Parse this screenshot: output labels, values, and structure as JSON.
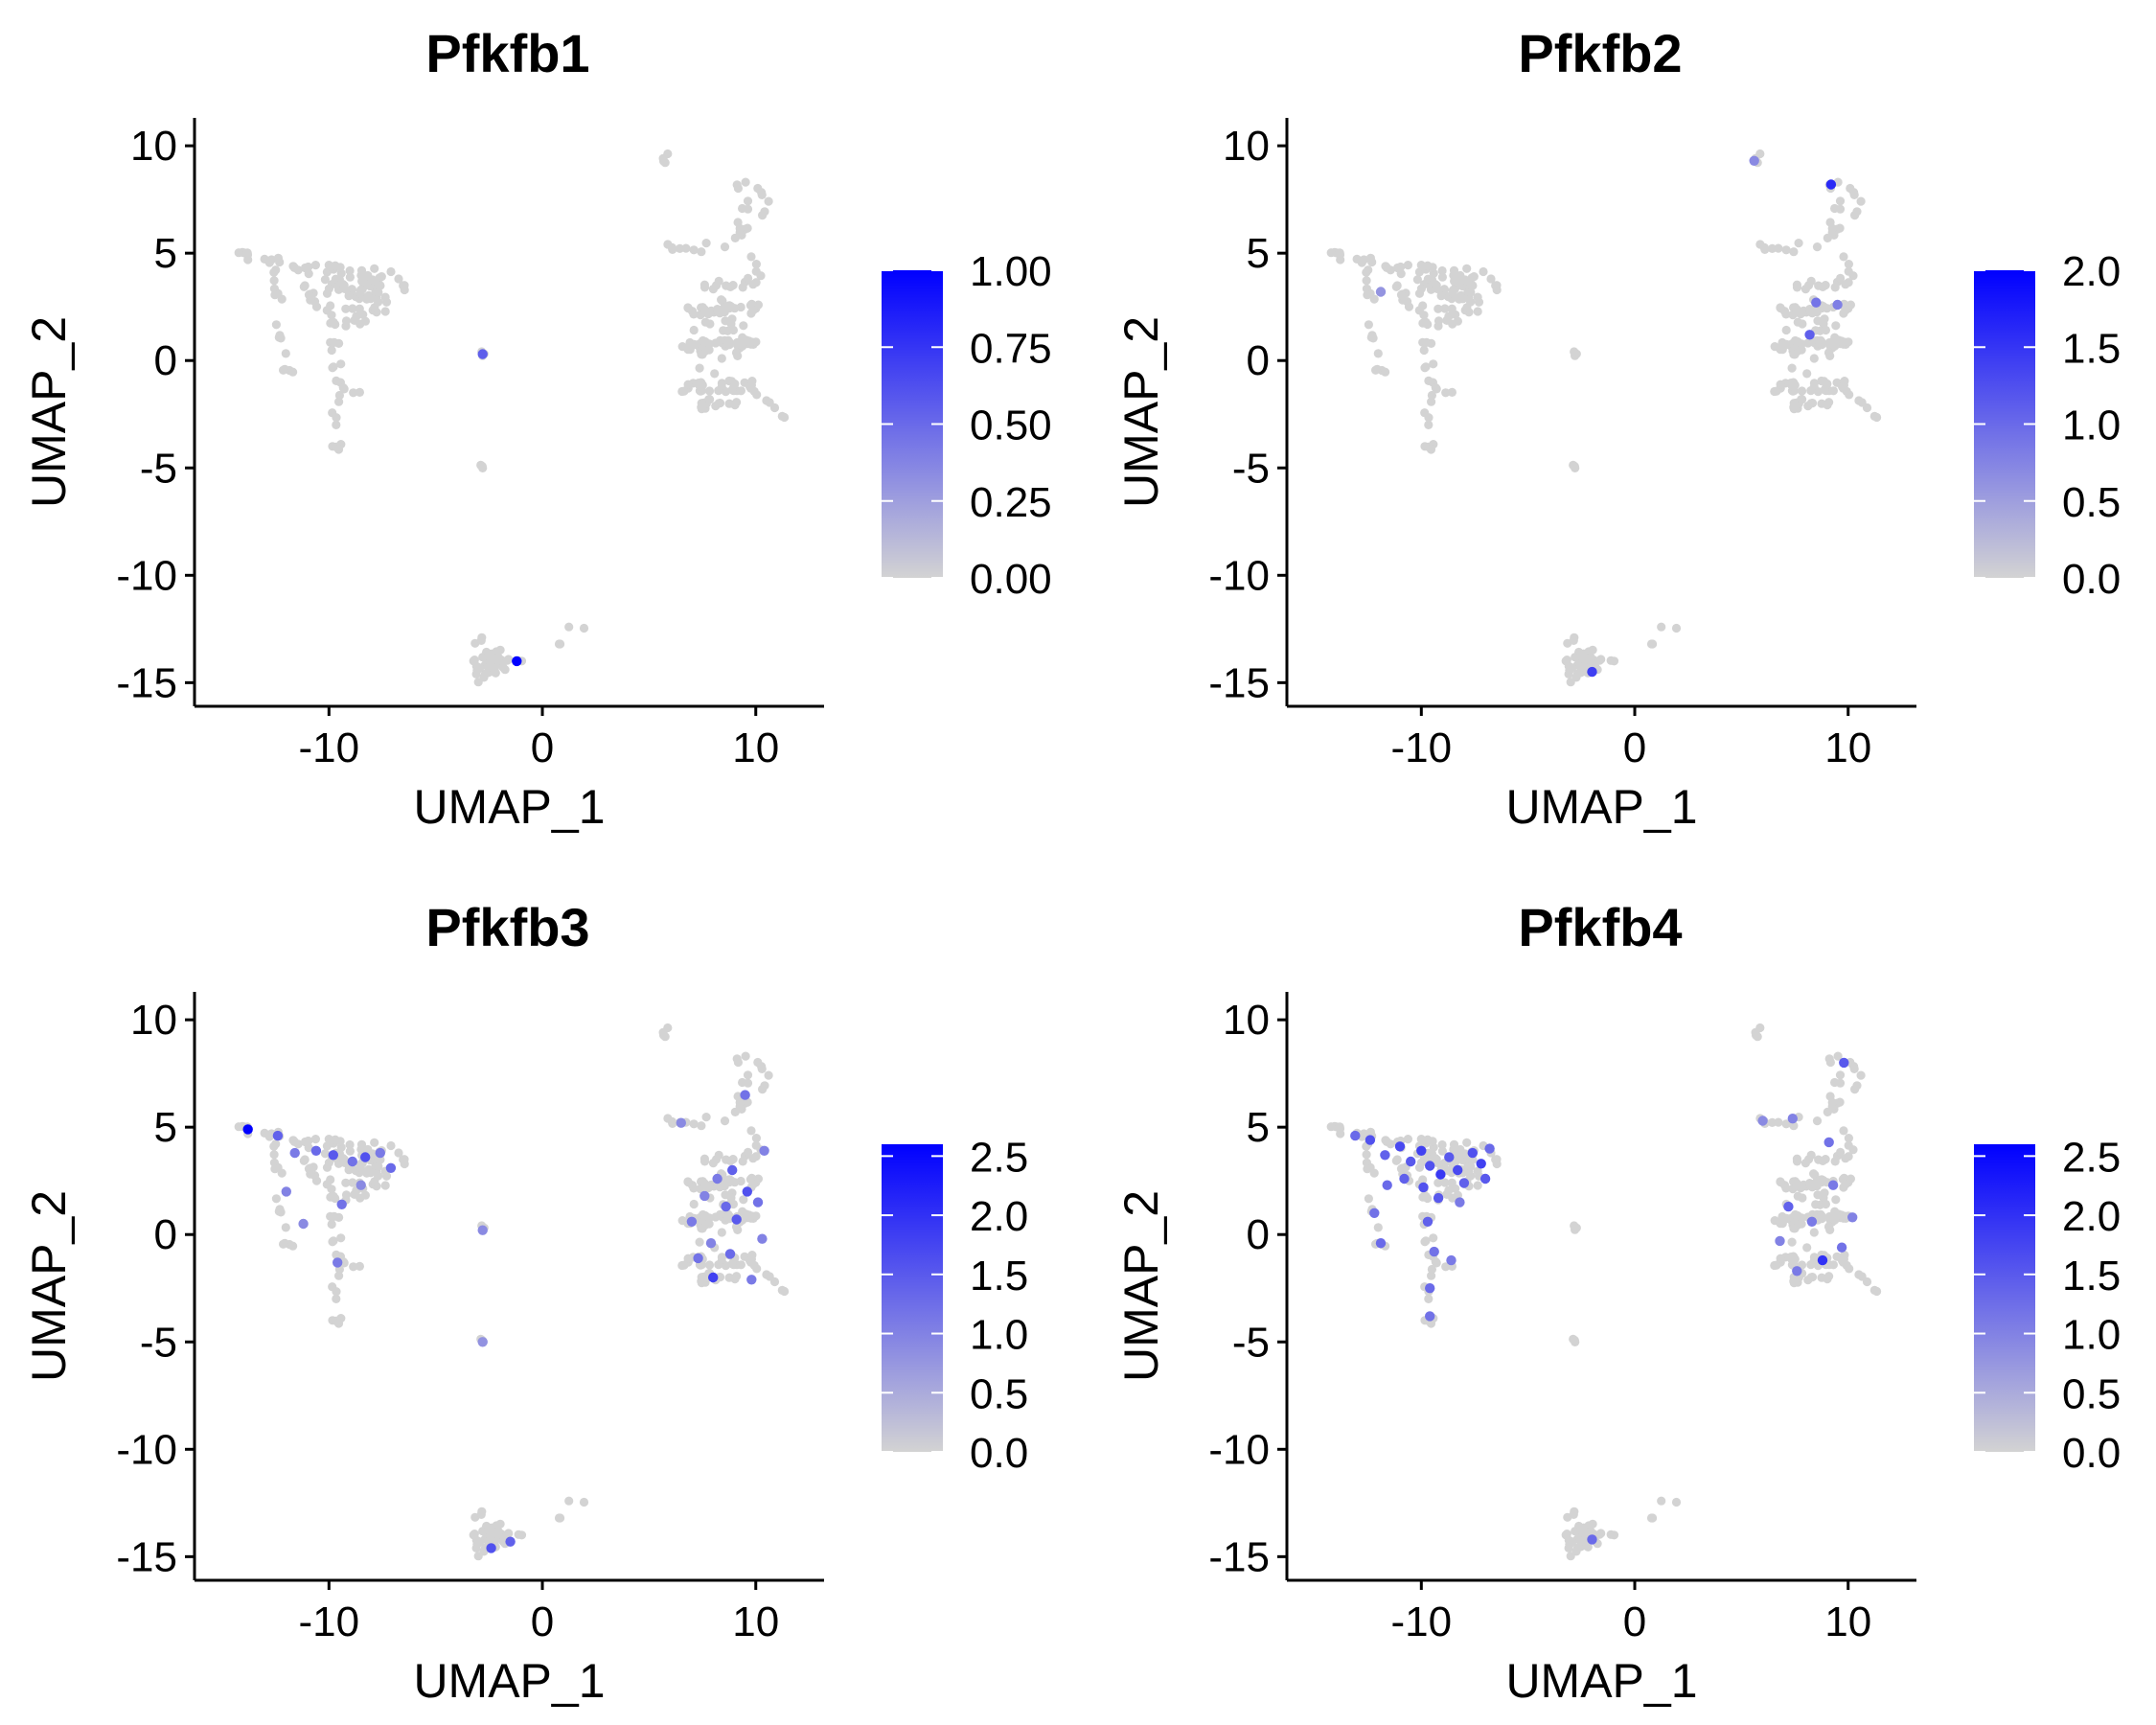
{
  "colors": {
    "low": "#d3d3d3",
    "high": "#0000ff",
    "axis": "#000000",
    "background": "#ffffff"
  },
  "axes": {
    "xlabel": "UMAP_1",
    "ylabel": "UMAP_2",
    "xticks": [
      -10,
      0,
      10
    ],
    "xtick_labels": [
      "-10",
      "0",
      "10"
    ],
    "yticks": [
      10,
      5,
      0,
      -5,
      -10,
      -15
    ],
    "ytick_labels": [
      "10",
      "5",
      "0",
      "-5",
      "-10",
      "-15"
    ],
    "xlim": [
      -16.3,
      13.2
    ],
    "ylim": [
      -16.1,
      11.3
    ]
  },
  "chart_data": [
    {
      "type": "scatter",
      "title": "Pfkfb1",
      "xlabel": "UMAP_1",
      "ylabel": "UMAP_2",
      "xlim": [
        -16.3,
        13.2
      ],
      "ylim": [
        -16.1,
        11.3
      ],
      "grid": false,
      "legend_position": "right",
      "color_scale": {
        "min": 0,
        "max": 1.0,
        "low": "#d3d3d3",
        "high": "#0000ff"
      },
      "legend_ticks": [
        1.0,
        0.75,
        0.5,
        0.25,
        0.0
      ],
      "legend_labels": [
        "1.00",
        "0.75",
        "0.50",
        "0.25",
        "0.00"
      ],
      "expressing_cells": [
        {
          "x": -2.8,
          "y": 0.3,
          "value": 0.55
        },
        {
          "x": -1.2,
          "y": -14.0,
          "value": 1.0
        }
      ]
    },
    {
      "type": "scatter",
      "title": "Pfkfb2",
      "xlabel": "UMAP_1",
      "ylabel": "UMAP_2",
      "xlim": [
        -16.3,
        13.2
      ],
      "ylim": [
        -16.1,
        11.3
      ],
      "grid": false,
      "legend_position": "right",
      "color_scale": {
        "min": 0,
        "max": 2.0,
        "low": "#d3d3d3",
        "high": "#0000ff"
      },
      "legend_ticks": [
        2.0,
        1.5,
        1.0,
        0.5,
        0.0
      ],
      "legend_labels": [
        "2.0",
        "1.5",
        "1.0",
        "0.5",
        "0.0"
      ],
      "expressing_cells": [
        {
          "x": 9.2,
          "y": 8.2,
          "value": 1.6
        },
        {
          "x": 8.5,
          "y": 2.7,
          "value": 0.9
        },
        {
          "x": 8.2,
          "y": 1.2,
          "value": 1.1
        },
        {
          "x": 9.5,
          "y": 2.6,
          "value": 0.8
        },
        {
          "x": -11.9,
          "y": 3.2,
          "value": 0.6
        },
        {
          "x": -2.0,
          "y": -14.5,
          "value": 1.4
        },
        {
          "x": 5.6,
          "y": 9.3,
          "value": 0.7
        }
      ]
    },
    {
      "type": "scatter",
      "title": "Pfkfb3",
      "xlabel": "UMAP_1",
      "ylabel": "UMAP_2",
      "xlim": [
        -16.3,
        13.2
      ],
      "ylim": [
        -16.1,
        11.3
      ],
      "grid": false,
      "legend_position": "right",
      "color_scale": {
        "min": 0,
        "max": 2.6,
        "low": "#d3d3d3",
        "high": "#0000ff"
      },
      "legend_ticks": [
        2.5,
        2.0,
        1.5,
        1.0,
        0.5,
        0.0
      ],
      "legend_labels": [
        "2.5",
        "2.0",
        "1.5",
        "1.0",
        "0.5",
        "0.0"
      ],
      "expressing_cells": [
        {
          "x": -13.8,
          "y": 4.9,
          "value": 2.6
        },
        {
          "x": -12.4,
          "y": 4.6,
          "value": 1.4
        },
        {
          "x": -11.6,
          "y": 3.8,
          "value": 1.1
        },
        {
          "x": -10.6,
          "y": 3.9,
          "value": 1.3
        },
        {
          "x": -9.8,
          "y": 3.7,
          "value": 1.5
        },
        {
          "x": -8.9,
          "y": 3.4,
          "value": 1.2
        },
        {
          "x": -8.3,
          "y": 3.6,
          "value": 1.6
        },
        {
          "x": -7.6,
          "y": 3.8,
          "value": 1.1
        },
        {
          "x": -7.1,
          "y": 3.1,
          "value": 1.3
        },
        {
          "x": -12.0,
          "y": 2.0,
          "value": 1.0
        },
        {
          "x": -9.4,
          "y": 1.4,
          "value": 1.2
        },
        {
          "x": -11.2,
          "y": 0.5,
          "value": 0.9
        },
        {
          "x": -9.6,
          "y": -1.3,
          "value": 1.1
        },
        {
          "x": -8.5,
          "y": 2.3,
          "value": 0.9
        },
        {
          "x": 9.5,
          "y": 6.5,
          "value": 1.2
        },
        {
          "x": 8.9,
          "y": 3.0,
          "value": 1.4
        },
        {
          "x": 8.2,
          "y": 2.6,
          "value": 1.1
        },
        {
          "x": 9.6,
          "y": 2.0,
          "value": 1.6
        },
        {
          "x": 8.6,
          "y": 1.3,
          "value": 1.3
        },
        {
          "x": 9.1,
          "y": 0.7,
          "value": 1.5
        },
        {
          "x": 7.6,
          "y": 1.8,
          "value": 1.0
        },
        {
          "x": 10.1,
          "y": 1.5,
          "value": 1.2
        },
        {
          "x": 7.0,
          "y": 0.6,
          "value": 1.1
        },
        {
          "x": 7.9,
          "y": -0.4,
          "value": 1.0
        },
        {
          "x": 8.8,
          "y": -0.9,
          "value": 1.3
        },
        {
          "x": 7.3,
          "y": -1.1,
          "value": 1.2
        },
        {
          "x": 8.0,
          "y": -2.0,
          "value": 1.8
        },
        {
          "x": 9.8,
          "y": -2.1,
          "value": 1.1
        },
        {
          "x": 10.3,
          "y": -0.2,
          "value": 1.0
        },
        {
          "x": 6.5,
          "y": 5.2,
          "value": 0.9
        },
        {
          "x": 10.4,
          "y": 3.9,
          "value": 1.0
        },
        {
          "x": -2.4,
          "y": -14.6,
          "value": 1.6
        },
        {
          "x": -1.5,
          "y": -14.3,
          "value": 1.4
        },
        {
          "x": -2.8,
          "y": 0.2,
          "value": 0.9
        },
        {
          "x": -2.8,
          "y": -5.0,
          "value": 0.8
        }
      ]
    },
    {
      "type": "scatter",
      "title": "Pfkfb4",
      "xlabel": "UMAP_1",
      "ylabel": "UMAP_2",
      "xlim": [
        -16.3,
        13.2
      ],
      "ylim": [
        -16.1,
        11.3
      ],
      "grid": false,
      "legend_position": "right",
      "color_scale": {
        "min": 0,
        "max": 2.6,
        "low": "#d3d3d3",
        "high": "#0000ff"
      },
      "legend_ticks": [
        2.5,
        2.0,
        1.5,
        1.0,
        0.5,
        0.0
      ],
      "legend_labels": [
        "2.5",
        "2.0",
        "1.5",
        "1.0",
        "0.5",
        "0.0"
      ],
      "expressing_cells": [
        {
          "x": -13.1,
          "y": 4.6,
          "value": 1.3
        },
        {
          "x": -12.4,
          "y": 4.4,
          "value": 1.6
        },
        {
          "x": -11.7,
          "y": 3.7,
          "value": 1.4
        },
        {
          "x": -11.0,
          "y": 4.1,
          "value": 1.7
        },
        {
          "x": -10.5,
          "y": 3.4,
          "value": 1.5
        },
        {
          "x": -10.0,
          "y": 3.9,
          "value": 1.8
        },
        {
          "x": -9.6,
          "y": 3.2,
          "value": 1.6
        },
        {
          "x": -9.1,
          "y": 2.8,
          "value": 1.9
        },
        {
          "x": -8.7,
          "y": 3.6,
          "value": 1.5
        },
        {
          "x": -8.3,
          "y": 3.0,
          "value": 1.7
        },
        {
          "x": -8.0,
          "y": 2.4,
          "value": 1.4
        },
        {
          "x": -7.6,
          "y": 3.8,
          "value": 1.6
        },
        {
          "x": -7.2,
          "y": 3.3,
          "value": 1.8
        },
        {
          "x": -7.0,
          "y": 2.6,
          "value": 1.5
        },
        {
          "x": -6.8,
          "y": 4.0,
          "value": 1.3
        },
        {
          "x": -9.9,
          "y": 2.2,
          "value": 1.6
        },
        {
          "x": -10.8,
          "y": 2.6,
          "value": 1.4
        },
        {
          "x": -9.2,
          "y": 1.7,
          "value": 1.5
        },
        {
          "x": -11.6,
          "y": 2.3,
          "value": 1.3
        },
        {
          "x": -12.2,
          "y": 1.0,
          "value": 1.2
        },
        {
          "x": -11.9,
          "y": -0.4,
          "value": 1.3
        },
        {
          "x": -9.7,
          "y": 0.6,
          "value": 1.4
        },
        {
          "x": -9.4,
          "y": -0.8,
          "value": 1.2
        },
        {
          "x": -8.6,
          "y": -1.2,
          "value": 1.1
        },
        {
          "x": -9.6,
          "y": -2.5,
          "value": 1.3
        },
        {
          "x": -9.6,
          "y": -3.8,
          "value": 1.2
        },
        {
          "x": -8.2,
          "y": 1.5,
          "value": 1.1
        },
        {
          "x": 9.8,
          "y": 8.0,
          "value": 1.5
        },
        {
          "x": 7.4,
          "y": 5.4,
          "value": 1.0
        },
        {
          "x": 9.1,
          "y": 4.3,
          "value": 1.2
        },
        {
          "x": 9.3,
          "y": 2.3,
          "value": 1.1
        },
        {
          "x": 7.2,
          "y": 1.3,
          "value": 1.4
        },
        {
          "x": 8.3,
          "y": 0.6,
          "value": 1.1
        },
        {
          "x": 9.7,
          "y": -0.6,
          "value": 1.2
        },
        {
          "x": 8.8,
          "y": -1.2,
          "value": 2.0
        },
        {
          "x": 6.8,
          "y": -0.3,
          "value": 1.0
        },
        {
          "x": 7.6,
          "y": -1.7,
          "value": 1.1
        },
        {
          "x": 10.2,
          "y": 0.8,
          "value": 1.0
        },
        {
          "x": 6.0,
          "y": 5.3,
          "value": 0.9
        },
        {
          "x": -2.0,
          "y": -14.2,
          "value": 1.3
        }
      ]
    }
  ]
}
